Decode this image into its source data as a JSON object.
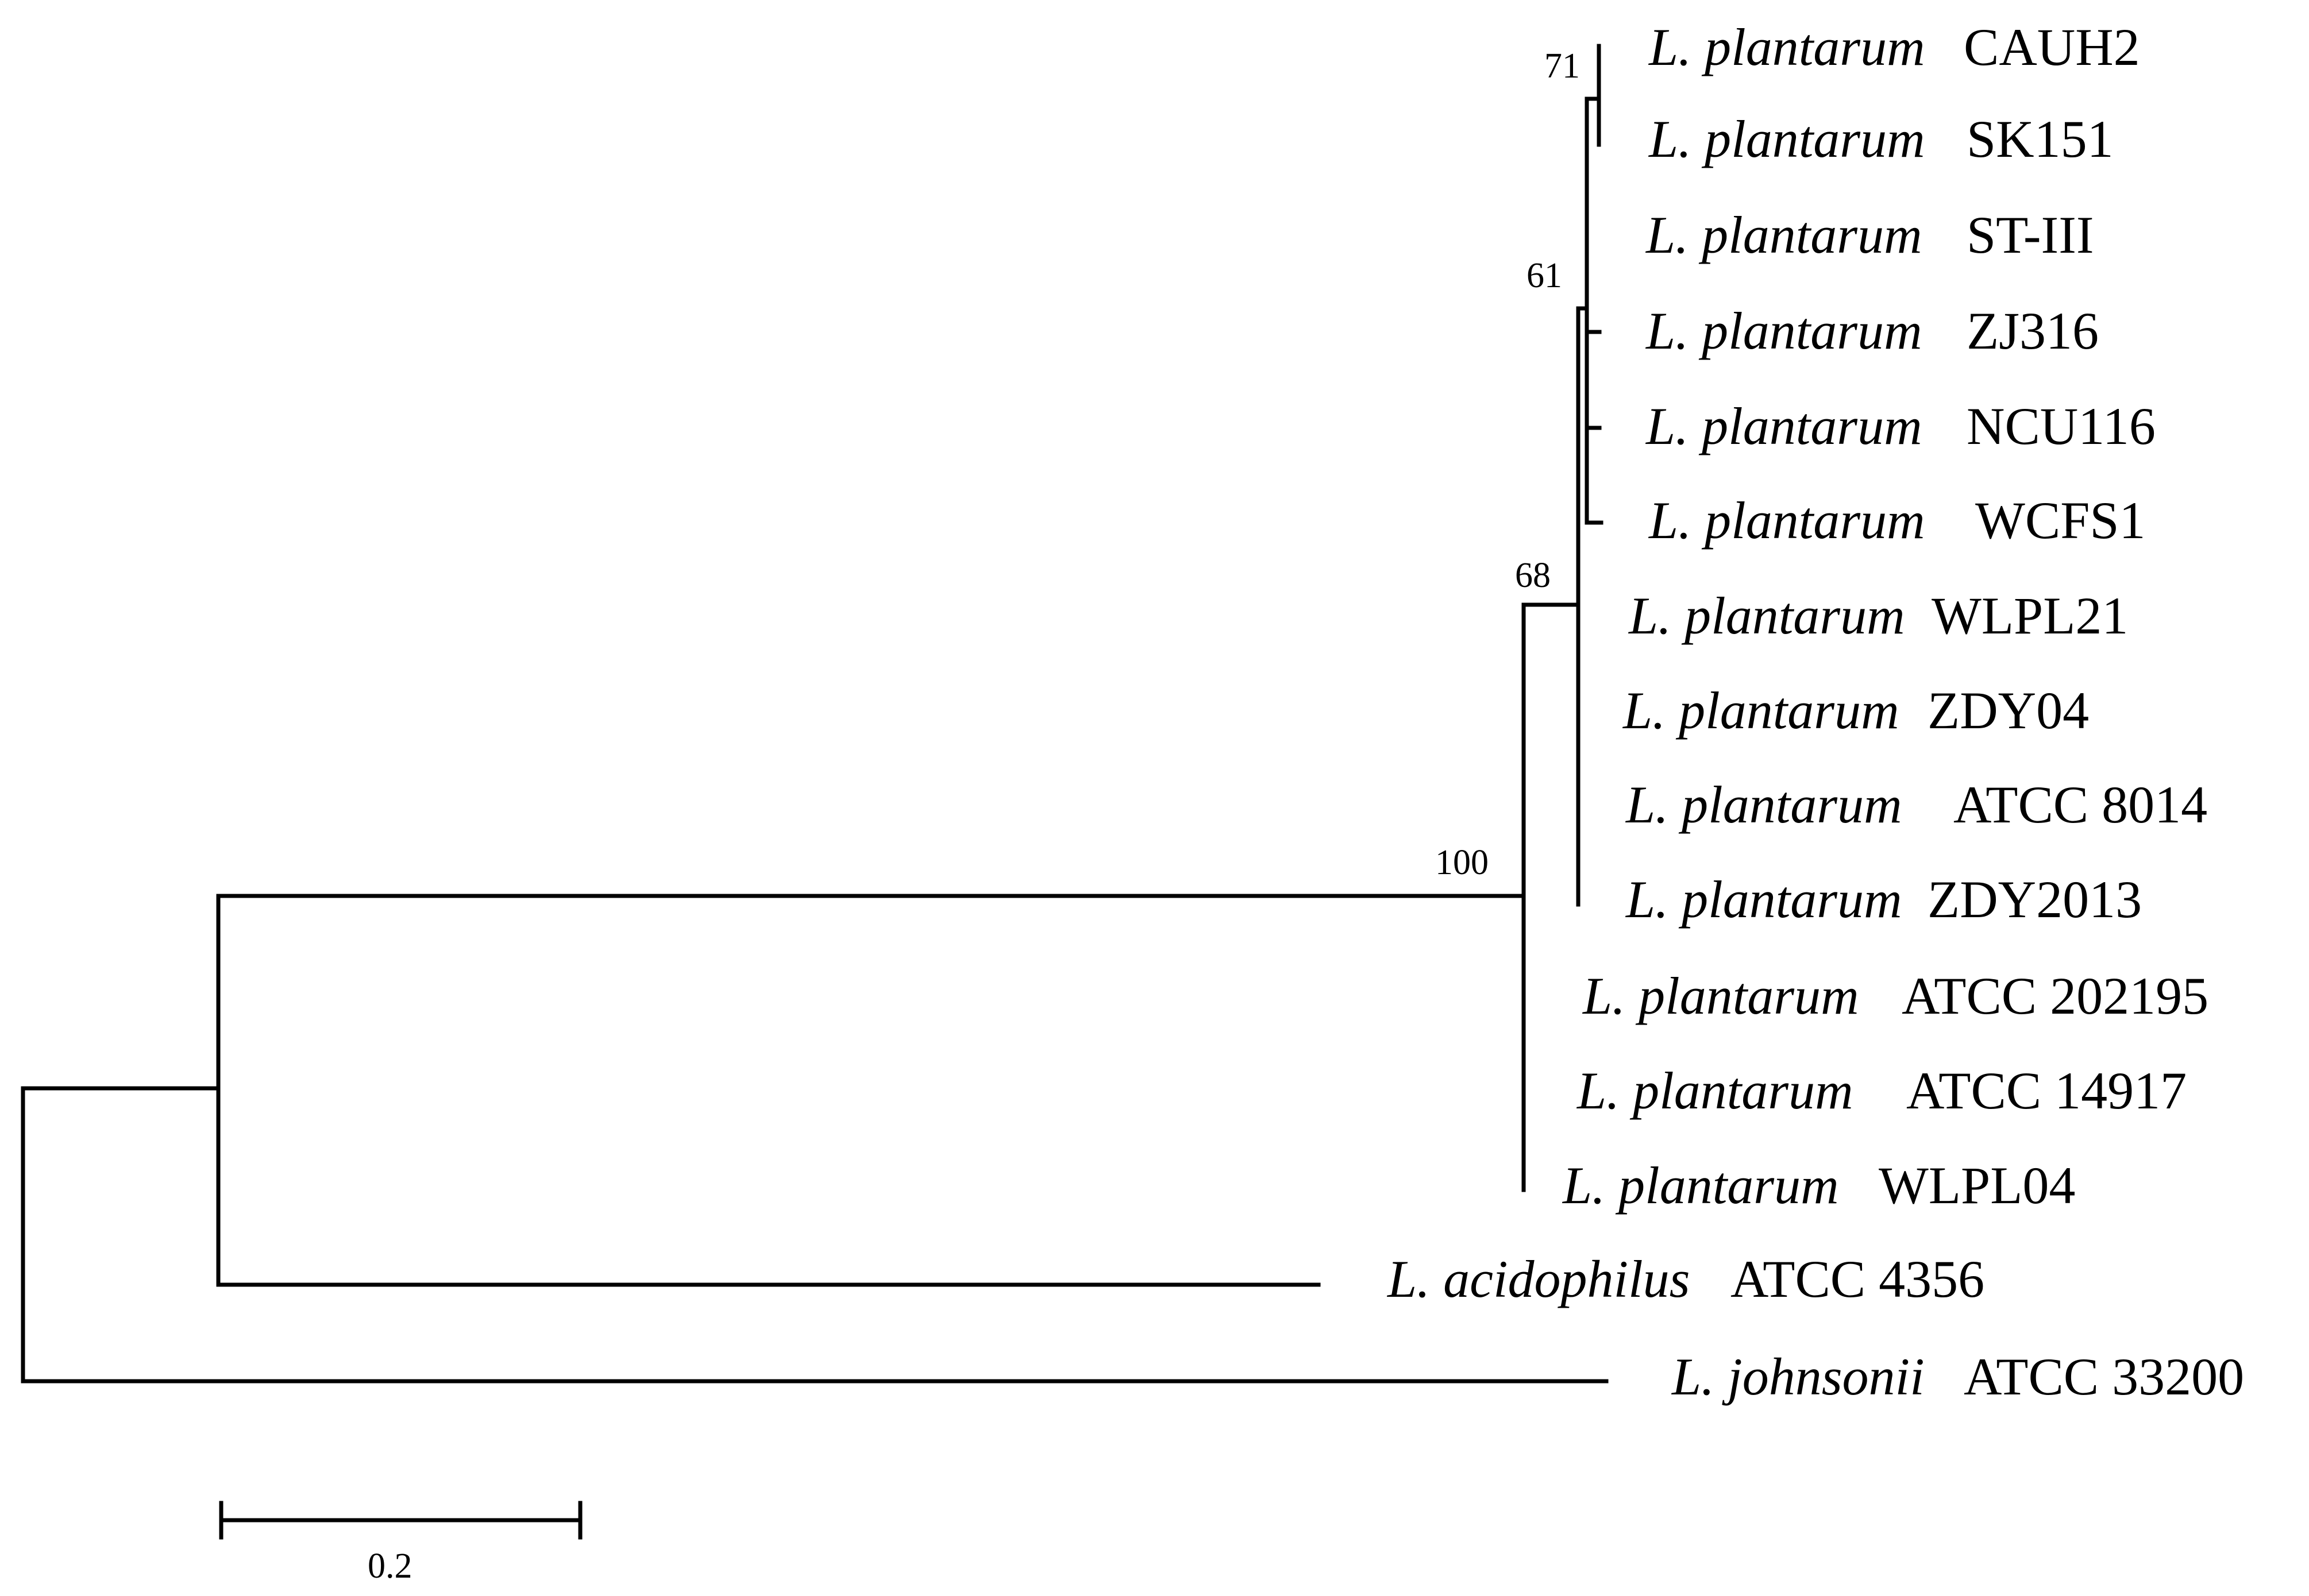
{
  "tree": {
    "taxa": [
      {
        "species": "L. plantarum",
        "strain": "CAUH2"
      },
      {
        "species": "L. plantarum",
        "strain": "SK151"
      },
      {
        "species": "L. plantarum",
        "strain": "ST-III"
      },
      {
        "species": "L. plantarum",
        "strain": "ZJ316"
      },
      {
        "species": "L. plantarum",
        "strain": "NCU116"
      },
      {
        "species": "L. plantarum",
        "strain": "WCFS1"
      },
      {
        "species": "L. plantarum",
        "strain": "WLPL21"
      },
      {
        "species": "L. plantarum",
        "strain": "ZDY04"
      },
      {
        "species": "L. plantarum",
        "strain": "ATCC 8014"
      },
      {
        "species": "L. plantarum",
        "strain": "ZDY2013"
      },
      {
        "species": "L. plantarum",
        "strain": "ATCC 202195"
      },
      {
        "species": "L. plantarum",
        "strain": "ATCC 14917"
      },
      {
        "species": "L. plantarum",
        "strain": "WLPL04"
      },
      {
        "species": "L. acidophilus",
        "strain": "ATCC 4356"
      },
      {
        "species": "L. johnsonii",
        "strain": "ATCC 33200"
      }
    ],
    "bootstrap": {
      "clade_cauh2_sk151": "71",
      "clade_core": "61",
      "clade_plantarum_inner": "68",
      "clade_plantarum": "100"
    },
    "scale_bar": {
      "value": 0.2,
      "label": "0.2"
    }
  }
}
